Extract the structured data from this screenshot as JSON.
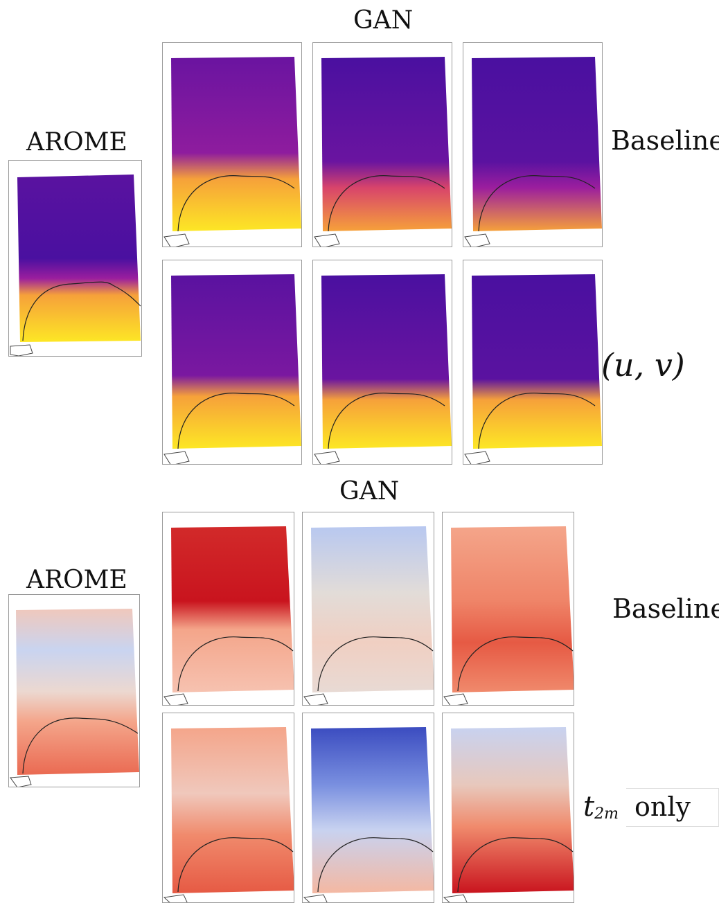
{
  "top_section": {
    "gan_heading": "GAN",
    "arome_heading": "AROME",
    "row1_label": "Baseline",
    "row2_label": "(u, v)",
    "colormap": "plasma",
    "colors": [
      "#2b0a7a",
      "#5a12a0",
      "#9b1e9e",
      "#d8446b",
      "#f6a13a",
      "#fde725"
    ]
  },
  "bottom_section": {
    "gan_heading": "GAN",
    "arome_heading": "AROME",
    "row1_label": "Baseline",
    "row2_label_symbol": "t",
    "row2_label_subscript": "2m",
    "row2_label_suffix": "only",
    "colormap": "coolwarm",
    "colors": [
      "#3b4cc0",
      "#9fb8f0",
      "#e6e2e0",
      "#f4a58a",
      "#c9141e"
    ]
  }
}
